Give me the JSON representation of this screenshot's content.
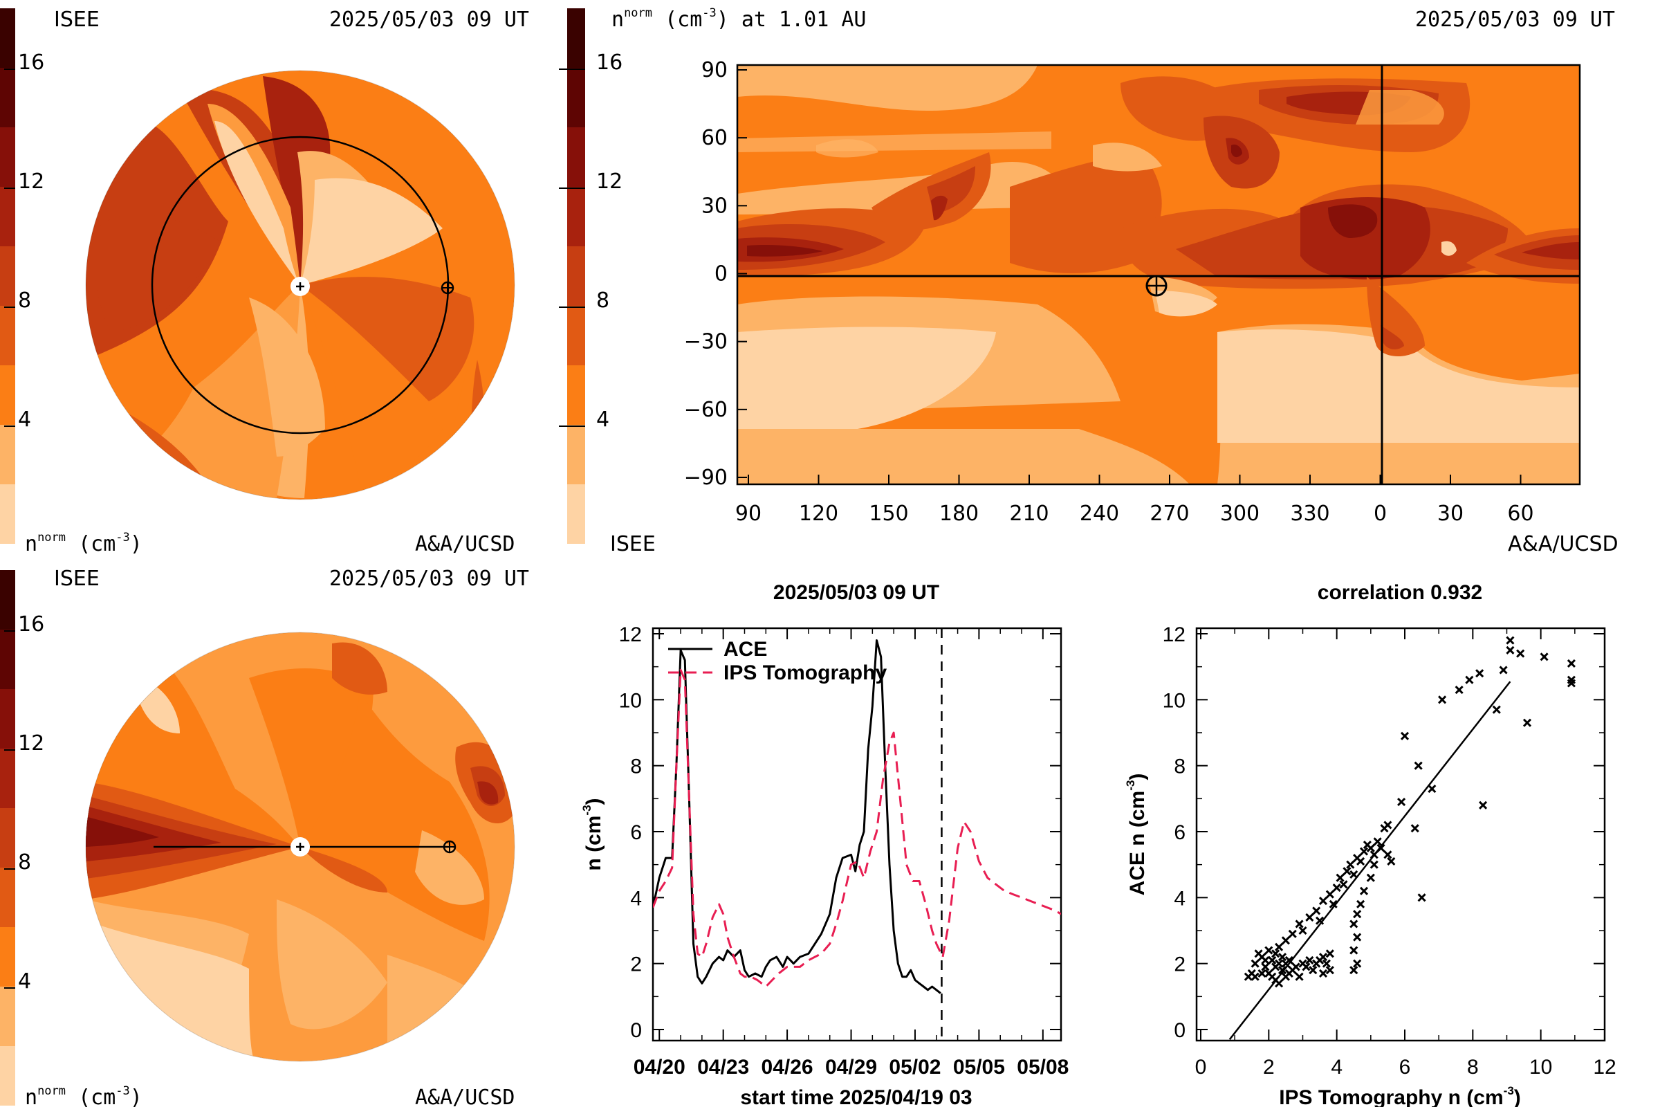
{
  "colors": {
    "levels": [
      "#fed3a4",
      "#fdb366",
      "#fd9b3e",
      "#fb7e15",
      "#e15a14",
      "#c73e12",
      "#a8220e",
      "#861009",
      "#5e0503",
      "#3a0200"
    ],
    "ace_line": "#000000",
    "ips_line": "#e81e52"
  },
  "panel_tl": {
    "left_label": "ISEE",
    "date": "2025/05/03 09 UT",
    "unit": "n",
    "unit_sup": "norm",
    "unit_rest": " (cm",
    "unit_exp": "-3",
    "unit_close": ")",
    "credit": "A&A/UCSD",
    "colorbar_ticks": [
      "16",
      "12",
      "8",
      "4"
    ]
  },
  "panel_tr": {
    "title_n": "n",
    "title_sup": "norm",
    "title_rest": " (cm",
    "title_exp": "-3",
    "title_tail": ") at 1.01 AU",
    "date": "2025/05/03 09 UT",
    "bottom_left": "ISEE",
    "credit": "A&A/UCSD",
    "colorbar_ticks": [
      "16",
      "12",
      "8",
      "4"
    ],
    "y_ticks": [
      "90",
      "60",
      "30",
      "0",
      "−30",
      "−60",
      "−90"
    ],
    "x_ticks": [
      "90",
      "120",
      "150",
      "180",
      "210",
      "240",
      "270",
      "300",
      "330",
      "0",
      "30",
      "60"
    ]
  },
  "panel_bl": {
    "left_label": "ISEE",
    "date": "2025/05/03 09 UT",
    "unit": "n",
    "unit_sup": "norm",
    "unit_rest": " (cm",
    "unit_exp": "-3",
    "unit_close": ")",
    "credit": "A&A/UCSD",
    "colorbar_ticks": [
      "16",
      "12",
      "8",
      "4"
    ]
  },
  "chart_data": [
    {
      "type": "line",
      "title": "2025/05/03 09 UT",
      "xlabel": "start time 2025/04/19 03",
      "ylabel_main": "n (cm",
      "ylabel_exp": "-3",
      "ylabel_close": ")",
      "ylim": [
        0,
        12
      ],
      "xlim_days": [
        0.7,
        19.85
      ],
      "x_ticks": [
        "04/20",
        "04/23",
        "04/26",
        "04/29",
        "05/02",
        "05/05",
        "05/08"
      ],
      "y_ticks": [
        "0",
        "2",
        "4",
        "6",
        "8",
        "10",
        "12"
      ],
      "marker_day": 14.25,
      "series": [
        {
          "name": "ACE",
          "x": [
            0.7,
            1.0,
            1.3,
            1.6,
            1.8,
            2.0,
            2.2,
            2.4,
            2.6,
            2.8,
            3.0,
            3.2,
            3.5,
            3.8,
            4.0,
            4.2,
            4.5,
            4.8,
            5.0,
            5.2,
            5.5,
            5.8,
            6.0,
            6.2,
            6.5,
            6.8,
            7.0,
            7.3,
            7.6,
            8.0,
            8.3,
            8.6,
            9.0,
            9.3,
            9.6,
            10.0,
            10.2,
            10.4,
            10.6,
            10.8,
            11.0,
            11.2,
            11.4,
            11.6,
            11.8,
            12.0,
            12.2,
            12.4,
            12.6,
            12.8,
            13.0,
            13.2,
            13.4,
            13.6,
            13.8,
            14.0,
            14.2
          ],
          "values": [
            3.7,
            4.6,
            5.2,
            5.2,
            8.0,
            11.5,
            11.2,
            7.0,
            2.6,
            1.6,
            1.4,
            1.6,
            2.0,
            2.2,
            2.1,
            2.4,
            2.2,
            2.4,
            1.8,
            1.6,
            1.7,
            1.6,
            1.9,
            2.1,
            2.2,
            1.9,
            2.2,
            2.0,
            2.2,
            2.3,
            2.6,
            2.9,
            3.5,
            4.6,
            5.2,
            5.3,
            4.8,
            5.6,
            6.0,
            8.5,
            9.8,
            11.8,
            11.3,
            8.0,
            5.0,
            3.0,
            2.0,
            1.6,
            1.6,
            1.8,
            1.5,
            1.4,
            1.3,
            1.2,
            1.3,
            1.2,
            1.1
          ]
        },
        {
          "name": "IPS Tomography",
          "x": [
            0.7,
            1.0,
            1.3,
            1.6,
            1.8,
            2.0,
            2.2,
            2.4,
            2.6,
            2.8,
            3.0,
            3.2,
            3.5,
            3.8,
            4.0,
            4.2,
            4.5,
            4.8,
            5.0,
            5.3,
            5.6,
            6.0,
            6.3,
            6.6,
            7.0,
            7.3,
            7.6,
            8.0,
            8.3,
            8.6,
            9.0,
            9.3,
            9.6,
            10.0,
            10.3,
            10.6,
            10.9,
            11.2,
            11.5,
            11.8,
            12.0,
            12.3,
            12.6,
            12.9,
            13.2,
            13.5,
            13.8,
            14.0,
            14.3,
            14.6,
            15.0,
            15.3,
            15.6,
            16.0,
            16.4,
            16.8,
            17.2,
            17.6,
            18.0,
            18.4,
            18.8,
            19.2,
            19.6,
            19.85
          ],
          "values": [
            3.7,
            4.2,
            4.5,
            4.9,
            8.0,
            10.9,
            10.6,
            7.0,
            3.5,
            2.3,
            2.2,
            2.6,
            3.4,
            3.8,
            3.5,
            2.8,
            2.2,
            1.7,
            1.6,
            1.6,
            1.5,
            1.3,
            1.5,
            1.7,
            1.9,
            1.9,
            1.9,
            2.1,
            2.2,
            2.3,
            2.6,
            3.2,
            3.9,
            5.0,
            5.1,
            4.6,
            5.4,
            6.0,
            7.6,
            8.7,
            9.0,
            7.0,
            5.0,
            4.5,
            4.5,
            3.8,
            3.0,
            2.6,
            2.2,
            3.3,
            5.5,
            6.3,
            6.0,
            5.1,
            4.6,
            4.4,
            4.2,
            4.1,
            4.0,
            3.9,
            3.8,
            3.7,
            3.6,
            3.5
          ]
        }
      ]
    },
    {
      "type": "scatter",
      "title": "correlation 0.932",
      "xlabel_main": "IPS Tomography n (cm",
      "xlabel_exp": "-3",
      "xlabel_close": ")",
      "ylabel_main": "ACE n (cm",
      "ylabel_exp": "-3",
      "ylabel_close": ")",
      "xlim": [
        0,
        12
      ],
      "ylim": [
        0,
        12
      ],
      "x_ticks": [
        "0",
        "2",
        "4",
        "6",
        "8",
        "10",
        "12"
      ],
      "y_ticks": [
        "0",
        "2",
        "4",
        "6",
        "8",
        "10",
        "12"
      ],
      "fit_line": {
        "x": [
          0.85,
          9.1
        ],
        "y": [
          -0.3,
          10.55
        ]
      },
      "points": [
        [
          1.4,
          1.6
        ],
        [
          1.5,
          1.7
        ],
        [
          1.6,
          1.6
        ],
        [
          1.6,
          2.0
        ],
        [
          1.7,
          2.3
        ],
        [
          1.8,
          1.7
        ],
        [
          1.8,
          2.2
        ],
        [
          1.9,
          1.9
        ],
        [
          1.9,
          2.1
        ],
        [
          2.0,
          1.7
        ],
        [
          2.0,
          2.4
        ],
        [
          2.1,
          2.1
        ],
        [
          2.1,
          1.6
        ],
        [
          2.2,
          1.5
        ],
        [
          2.2,
          1.9
        ],
        [
          2.2,
          2.3
        ],
        [
          2.3,
          2.0
        ],
        [
          2.3,
          1.4
        ],
        [
          2.4,
          2.2
        ],
        [
          2.4,
          1.8
        ],
        [
          2.5,
          2.0
        ],
        [
          2.5,
          1.6
        ],
        [
          2.6,
          1.7
        ],
        [
          2.6,
          2.1
        ],
        [
          2.7,
          1.8
        ],
        [
          2.8,
          1.9
        ],
        [
          2.9,
          1.6
        ],
        [
          3.0,
          2.0
        ],
        [
          3.1,
          1.9
        ],
        [
          3.2,
          2.1
        ],
        [
          3.3,
          1.8
        ],
        [
          3.4,
          2.0
        ],
        [
          3.5,
          2.1
        ],
        [
          3.6,
          2.2
        ],
        [
          3.7,
          2.0
        ],
        [
          3.8,
          2.3
        ],
        [
          3.6,
          1.7
        ],
        [
          3.8,
          1.8
        ],
        [
          2.3,
          2.5
        ],
        [
          2.5,
          2.7
        ],
        [
          2.7,
          2.9
        ],
        [
          2.9,
          3.2
        ],
        [
          3.0,
          3.0
        ],
        [
          3.2,
          3.4
        ],
        [
          3.4,
          3.6
        ],
        [
          3.5,
          3.3
        ],
        [
          3.6,
          3.9
        ],
        [
          3.8,
          4.1
        ],
        [
          3.9,
          3.8
        ],
        [
          4.0,
          4.3
        ],
        [
          4.1,
          4.6
        ],
        [
          4.2,
          4.4
        ],
        [
          4.3,
          4.8
        ],
        [
          4.4,
          5.0
        ],
        [
          4.5,
          4.7
        ],
        [
          4.6,
          5.2
        ],
        [
          4.7,
          5.1
        ],
        [
          4.8,
          5.4
        ],
        [
          4.9,
          5.6
        ],
        [
          5.0,
          5.5
        ],
        [
          5.1,
          5.3
        ],
        [
          5.2,
          5.7
        ],
        [
          5.3,
          5.5
        ],
        [
          5.4,
          6.1
        ],
        [
          4.5,
          1.8
        ],
        [
          4.6,
          2.0
        ],
        [
          4.5,
          2.4
        ],
        [
          4.6,
          2.8
        ],
        [
          4.5,
          3.2
        ],
        [
          4.6,
          3.5
        ],
        [
          4.7,
          3.8
        ],
        [
          4.8,
          4.2
        ],
        [
          5.0,
          4.6
        ],
        [
          5.1,
          5.0
        ],
        [
          5.5,
          6.2
        ],
        [
          5.5,
          5.3
        ],
        [
          5.6,
          5.1
        ],
        [
          5.9,
          6.9
        ],
        [
          6.0,
          8.9
        ],
        [
          6.3,
          6.1
        ],
        [
          6.4,
          8.0
        ],
        [
          6.5,
          4.0
        ],
        [
          6.8,
          7.3
        ],
        [
          7.1,
          10.0
        ],
        [
          7.6,
          10.3
        ],
        [
          7.9,
          10.6
        ],
        [
          8.2,
          10.8
        ],
        [
          8.3,
          6.8
        ],
        [
          8.7,
          9.7
        ],
        [
          8.9,
          10.9
        ],
        [
          9.1,
          11.8
        ],
        [
          9.1,
          11.5
        ],
        [
          9.4,
          11.4
        ],
        [
          9.6,
          9.3
        ],
        [
          10.1,
          11.3
        ],
        [
          10.9,
          11.1
        ],
        [
          10.9,
          10.6
        ],
        [
          10.9,
          10.5
        ]
      ]
    }
  ]
}
